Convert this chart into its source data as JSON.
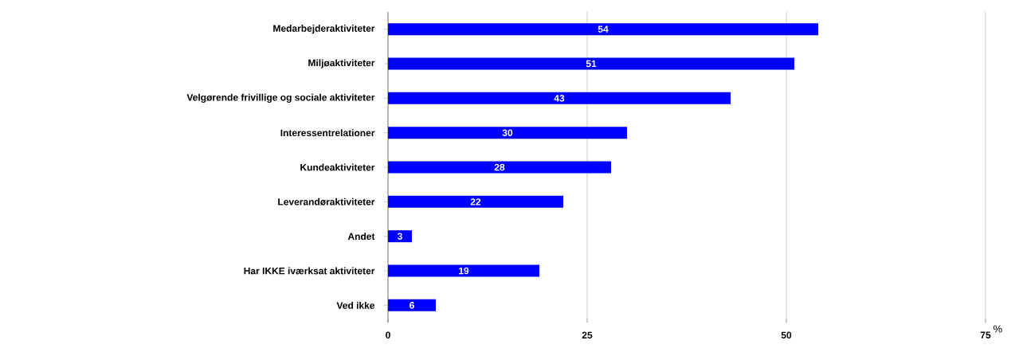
{
  "chart_data": {
    "type": "bar",
    "orientation": "horizontal",
    "categories": [
      "Medarbejderaktiviteter",
      "Miljøaktiviteter",
      "Velgørende frivillige og sociale aktiviteter",
      "Interessentrelationer",
      "Kundeaktiviteter",
      "Leverandøraktiviteter",
      "Andet",
      "Har IKKE iværksat aktiviteter",
      "Ved ikke"
    ],
    "values": [
      54,
      51,
      43,
      30,
      28,
      22,
      3,
      19,
      6
    ],
    "color": "#0000ff",
    "xlim": [
      0,
      75
    ],
    "xticks": [
      0,
      25,
      50,
      75
    ],
    "xlabel": "%",
    "grid": "x",
    "data_labels": true
  }
}
